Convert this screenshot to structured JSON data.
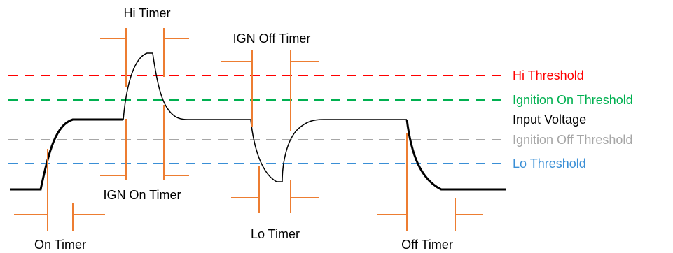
{
  "colors": {
    "hi": "#ff0000",
    "ign_on": "#00b050",
    "ign_off": "#a6a6a6",
    "lo": "#3a8fd6",
    "signal": "#000000",
    "timer": "#ed7d31"
  },
  "thresholds": {
    "hi": "Hi Threshold",
    "ign_on": "Ignition On Threshold",
    "input_voltage": "Input Voltage",
    "ign_off": "Ignition Off Threshold",
    "lo": "Lo Threshold"
  },
  "timers": {
    "hi": "Hi Timer",
    "ign_off": "IGN Off Timer",
    "ign_on": "IGN On Timer",
    "on": "On Timer",
    "lo": "Lo Timer",
    "off": "Off Timer"
  }
}
